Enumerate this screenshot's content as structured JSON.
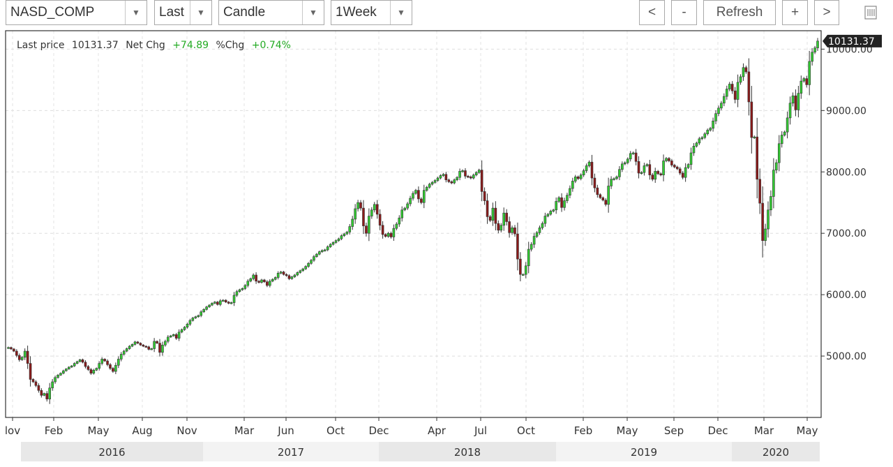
{
  "toolbar": {
    "symbol": "NASD_COMP",
    "price_field": "Last",
    "chart_style": "Candle",
    "interval": "1Week",
    "dropdown_icon": "triangle-down-icon",
    "scroll_left_label": "<",
    "zoom_out_label": "-",
    "refresh_label": "Refresh",
    "zoom_in_label": "+",
    "scroll_right_label": ">",
    "menu_icon": "list-icon"
  },
  "header": {
    "last_price_label": "Last price",
    "last_price": "10131.37",
    "net_chg_label": "Net Chg",
    "net_chg": "+74.89",
    "pct_chg_label": "%Chg",
    "pct_chg": "+0.74%"
  },
  "colors": {
    "up": "#33cc33",
    "down": "#8b1a1a",
    "change_text": "#22aa22",
    "price_tag": "#222222"
  },
  "chart_data": {
    "type": "candlestick",
    "interval": "weekly",
    "symbol": "NASD_COMP",
    "ylim": [
      4000,
      10300
    ],
    "y_ticks": [
      "5000.00",
      "6000.00",
      "7000.00",
      "8000.00",
      "9000.00",
      "10000.00"
    ],
    "x_tick_labels": [
      "lov",
      "Feb",
      "May",
      "Aug",
      "Nov",
      "Mar",
      "Jun",
      "Oct",
      "Dec",
      "Apr",
      "Jul",
      "Oct",
      "Feb",
      "May",
      "Sep",
      "Dec",
      "Mar",
      "May"
    ],
    "year_labels": [
      "2016",
      "2017",
      "2018",
      "2019",
      "2020"
    ],
    "last_price_tag": "10131.37",
    "grid": true,
    "weekly_close": [
      5140,
      5115,
      5080,
      5010,
      4940,
      4980,
      5080,
      4880,
      4620,
      4580,
      4520,
      4440,
      4360,
      4390,
      4300,
      4480,
      4580,
      4650,
      4690,
      4720,
      4760,
      4790,
      4820,
      4840,
      4880,
      4910,
      4940,
      4900,
      4830,
      4780,
      4720,
      4770,
      4800,
      4880,
      4950,
      4920,
      4860,
      4800,
      4750,
      4850,
      4950,
      5030,
      5080,
      5120,
      5160,
      5190,
      5230,
      5210,
      5180,
      5160,
      5150,
      5110,
      5120,
      5240,
      5210,
      5060,
      5180,
      5240,
      5310,
      5330,
      5350,
      5290,
      5390,
      5430,
      5470,
      5520,
      5580,
      5620,
      5640,
      5660,
      5720,
      5760,
      5800,
      5830,
      5860,
      5880,
      5840,
      5900,
      5910,
      5880,
      5860,
      5870,
      5990,
      6050,
      6080,
      6100,
      6150,
      6220,
      6260,
      6320,
      6220,
      6200,
      6240,
      6210,
      6150,
      6220,
      6250,
      6280,
      6350,
      6370,
      6330,
      6310,
      6260,
      6290,
      6320,
      6360,
      6390,
      6420,
      6460,
      6510,
      6560,
      6620,
      6660,
      6700,
      6720,
      6730,
      6780,
      6820,
      6850,
      6880,
      6910,
      6960,
      6990,
      7020,
      7110,
      7230,
      7400,
      7500,
      7410,
      7120,
      7000,
      7280,
      7380,
      7470,
      7310,
      7130,
      6980,
      6950,
      7000,
      6940,
      7080,
      7150,
      7250,
      7380,
      7410,
      7480,
      7570,
      7650,
      7700,
      7560,
      7500,
      7700,
      7750,
      7800,
      7830,
      7860,
      7900,
      7940,
      7960,
      7870,
      7840,
      7820,
      7870,
      7910,
      8010,
      8020,
      7930,
      7920,
      7900,
      7950,
      7990,
      8030,
      7680,
      7530,
      7270,
      7210,
      7410,
      7160,
      7050,
      7130,
      7330,
      7190,
      7010,
      7090,
      6990,
      6580,
      6330,
      6330,
      6470,
      6740,
      6820,
      6950,
      7010,
      7090,
      7160,
      7280,
      7310,
      7360,
      7380,
      7520,
      7580,
      7420,
      7530,
      7620,
      7730,
      7850,
      7920,
      7890,
      7950,
      8020,
      8100,
      8160,
      7900,
      7740,
      7630,
      7580,
      7540,
      7470,
      7770,
      7880,
      7890,
      7920,
      8040,
      8130,
      8150,
      8210,
      8300,
      8310,
      8170,
      7980,
      7990,
      8100,
      8120,
      7950,
      7880,
      8010,
      7970,
      7950,
      8180,
      8220,
      8180,
      8110,
      8080,
      8050,
      7980,
      7910,
      8070,
      8120,
      8310,
      8420,
      8470,
      8540,
      8560,
      8620,
      8680,
      8710,
      8830,
      8950,
      9040,
      9120,
      9230,
      9350,
      9430,
      9320,
      9180,
      9460,
      9550,
      9700,
      9630,
      9140,
      8560,
      8570,
      7880,
      7490,
      6880,
      7070,
      7380,
      7600,
      8030,
      8150,
      8460,
      8600,
      8650,
      8880,
      9120,
      9240,
      9010,
      9280,
      9480,
      9520,
      9420,
      9800,
      9950,
      10020,
      10131.37
    ]
  }
}
